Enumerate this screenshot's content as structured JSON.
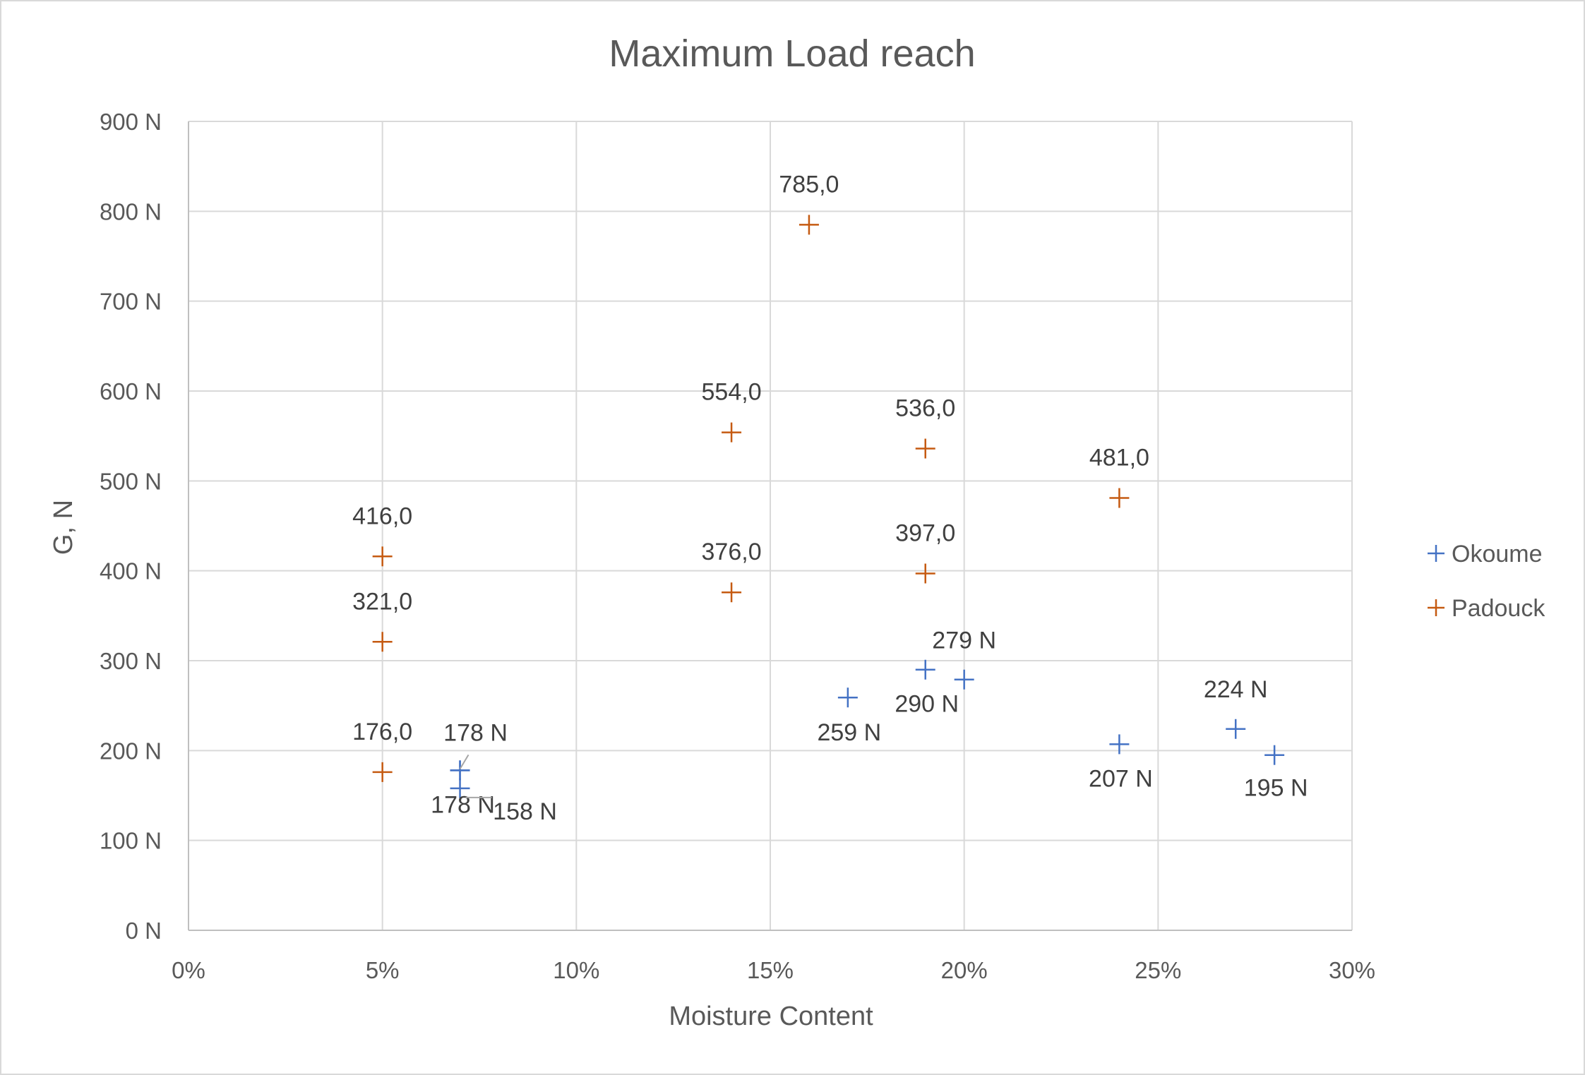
{
  "chart_data": {
    "type": "scatter",
    "title": "Maximum Load reach",
    "xlabel": "Moisture Content",
    "ylabel": "G, N",
    "xlim": [
      0,
      0.3
    ],
    "ylim": [
      0,
      900
    ],
    "x_ticks": [
      "0%",
      "5%",
      "10%",
      "15%",
      "20%",
      "25%",
      "30%"
    ],
    "y_ticks": [
      "0 N",
      "100 N",
      "200 N",
      "300 N",
      "400 N",
      "500 N",
      "600 N",
      "700 N",
      "800 N",
      "900 N"
    ],
    "grid": true,
    "legend_position": "right",
    "series": [
      {
        "name": "Okoume",
        "color": "#4472c4",
        "marker": "plus",
        "points": [
          {
            "x": 0.07,
            "y": 178,
            "label": "178 N"
          },
          {
            "x": 0.07,
            "y": 158,
            "label": "158 N"
          },
          {
            "x": 0.07,
            "y": 178,
            "label": "178 N"
          },
          {
            "x": 0.17,
            "y": 259,
            "label": "259 N"
          },
          {
            "x": 0.19,
            "y": 290,
            "label": "290 N"
          },
          {
            "x": 0.2,
            "y": 279,
            "label": "279 N"
          },
          {
            "x": 0.24,
            "y": 207,
            "label": "207 N"
          },
          {
            "x": 0.27,
            "y": 224,
            "label": "224 N"
          },
          {
            "x": 0.28,
            "y": 195,
            "label": "195 N"
          }
        ]
      },
      {
        "name": "Padouck",
        "color": "#c55a11",
        "marker": "plus",
        "points": [
          {
            "x": 0.05,
            "y": 416,
            "label": "416,0"
          },
          {
            "x": 0.05,
            "y": 321,
            "label": "321,0"
          },
          {
            "x": 0.05,
            "y": 176,
            "label": "176,0"
          },
          {
            "x": 0.14,
            "y": 554,
            "label": "554,0"
          },
          {
            "x": 0.14,
            "y": 376,
            "label": "376,0"
          },
          {
            "x": 0.16,
            "y": 785,
            "label": "785,0"
          },
          {
            "x": 0.19,
            "y": 536,
            "label": "536,0"
          },
          {
            "x": 0.19,
            "y": 397,
            "label": "397,0"
          },
          {
            "x": 0.24,
            "y": 481,
            "label": "481,0"
          }
        ]
      }
    ]
  }
}
